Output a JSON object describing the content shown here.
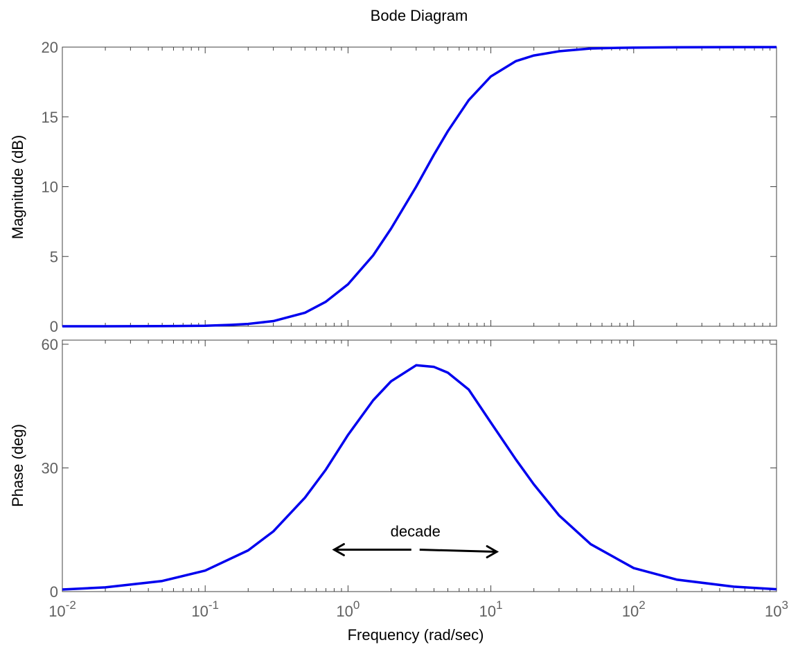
{
  "chart_data": {
    "type": "line",
    "title": "Bode Diagram",
    "xlabel": "Frequency  (rad/sec)",
    "x_scale": "log",
    "xlim": [
      0.01,
      1000
    ],
    "x_tick_labels": [
      {
        "base": "10",
        "exp": "-2"
      },
      {
        "base": "10",
        "exp": "-1"
      },
      {
        "base": "10",
        "exp": "0"
      },
      {
        "base": "10",
        "exp": "1"
      },
      {
        "base": "10",
        "exp": "2"
      },
      {
        "base": "10",
        "exp": "3"
      }
    ],
    "line_color": "#0000ee",
    "panels": [
      {
        "ylabel": "Magnitude (dB)",
        "ylim": [
          0,
          20
        ],
        "yticks": [
          "0",
          "5",
          "10",
          "15",
          "20"
        ],
        "ytick_values": [
          0,
          5,
          10,
          15,
          20
        ],
        "series": [
          {
            "x": [
              0.01,
              0.02,
              0.05,
              0.1,
              0.15,
              0.2,
              0.3,
              0.5,
              0.7,
              1,
              1.5,
              2,
              3,
              4,
              5,
              7,
              10,
              15,
              20,
              30,
              50,
              70,
              100,
              200,
              500,
              1000
            ],
            "values": [
              0,
              0,
              0.01,
              0.04,
              0.1,
              0.17,
              0.37,
              0.97,
              1.76,
              3.01,
              5.08,
              6.99,
              10.0,
              12.3,
              13.98,
              16.2,
              17.9,
              19.0,
              19.4,
              19.7,
              19.9,
              19.94,
              19.96,
              19.99,
              20.0,
              20.0
            ]
          }
        ]
      },
      {
        "ylabel": "Phase (deg)",
        "ylim": [
          0,
          61
        ],
        "yticks": [
          "0",
          "30",
          "60"
        ],
        "ytick_values": [
          0,
          30,
          60
        ],
        "series": [
          {
            "x": [
              0.01,
              0.02,
              0.05,
              0.1,
              0.2,
              0.3,
              0.5,
              0.7,
              1,
              1.5,
              2,
              3,
              4,
              5,
              7,
              10,
              15,
              20,
              30,
              50,
              100,
              200,
              500,
              1000
            ],
            "values": [
              0.51,
              1.03,
              2.57,
              5.1,
              10.0,
              14.6,
              22.8,
              29.6,
              38.0,
              46.4,
              51.0,
              54.9,
              54.5,
              53.1,
              49.0,
              41.0,
              32.0,
              26.0,
              18.5,
              11.5,
              5.7,
              2.9,
              1.2,
              0.57
            ]
          }
        ]
      }
    ],
    "annotation": {
      "text": "decade",
      "from_x": 0.8,
      "to_x": 11,
      "y": 10
    }
  }
}
